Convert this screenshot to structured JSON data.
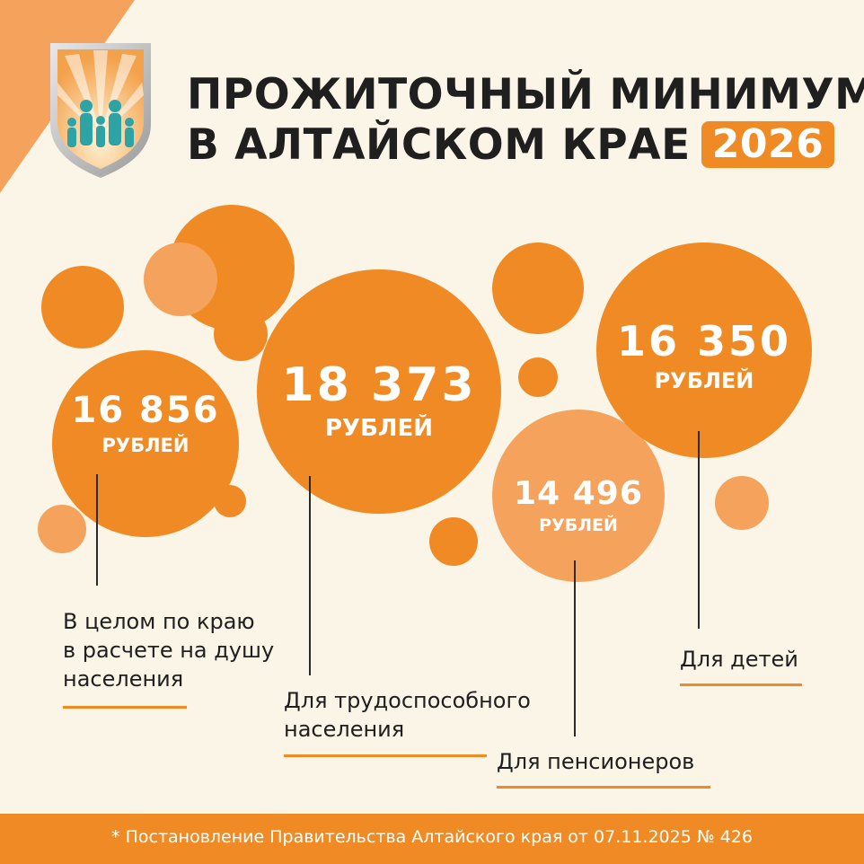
{
  "header": {
    "title_line1": "ПРОЖИТОЧНЫЙ МИНИМУМ",
    "title_line2": "В АЛТАЙСКОМ КРАЕ",
    "year": "2026"
  },
  "logo": {
    "icon": "family-shield-icon"
  },
  "stats": [
    {
      "value": "16 856",
      "unit": "РУБЛЕЙ",
      "label_lines": [
        "В целом по краю",
        "в расчете на душу",
        "населения"
      ]
    },
    {
      "value": "18 373",
      "unit": "РУБЛЕЙ",
      "label_lines": [
        "Для трудоспособного",
        "населения"
      ]
    },
    {
      "value": "14 496",
      "unit": "РУБЛЕЙ",
      "label_lines": [
        "Для пенсионеров"
      ]
    },
    {
      "value": "16 350",
      "unit": "РУБЛЕЙ",
      "label_lines": [
        "Для детей"
      ]
    }
  ],
  "footer": {
    "note": "* Постановление Правительства Алтайского края от 07.11.2025 № 426"
  },
  "colors": {
    "accent": "#f08a24",
    "accent_light": "#f5a35c",
    "background": "#fbf5e8",
    "text": "#1f1f1f"
  }
}
